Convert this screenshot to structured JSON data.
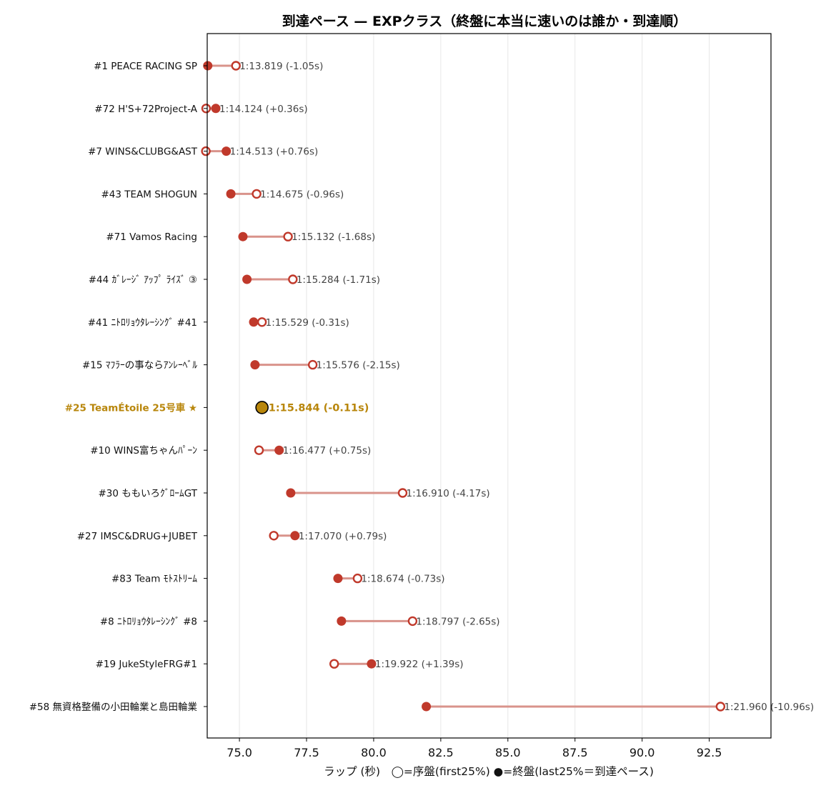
{
  "chart_data": {
    "type": "dumbbell",
    "title": "到達ペース — EXPクラス（終盤に本当に速いのは誰か・到達順）",
    "xlabel": "ラップ (秒)　◯=序盤(first25%)  ●=終盤(last25%＝到達ペース)",
    "xlim": [
      73.8,
      94.8
    ],
    "xticks": [
      "75.0",
      "77.5",
      "80.0",
      "82.5",
      "85.0",
      "87.5",
      "90.0",
      "92.5"
    ],
    "xtick_values": [
      75.0,
      77.5,
      80.0,
      82.5,
      85.0,
      87.5,
      90.0,
      92.5
    ],
    "grid": "x",
    "colors": {
      "point": "#c0392b",
      "line": "#d9938b",
      "highlight": "#b8860b",
      "highlight_label": "#b8860b"
    },
    "rows": [
      {
        "name": "#1 PEACE RACING SP",
        "early": 74.87,
        "late": 73.82,
        "label": "1:13.819  (-1.05s)",
        "highlight": false
      },
      {
        "name": "#72 H'S+72Project-A",
        "early": 73.76,
        "late": 74.12,
        "label": "1:14.124  (+0.36s)",
        "highlight": false
      },
      {
        "name": "#7 WINS&CLUBG&AST",
        "early": 73.75,
        "late": 74.51,
        "label": "1:14.513  (+0.76s)",
        "highlight": false
      },
      {
        "name": "#43 TEAM SHOGUN",
        "early": 75.64,
        "late": 74.68,
        "label": "1:14.675  (-0.96s)",
        "highlight": false
      },
      {
        "name": "#71 Vamos Racing",
        "early": 76.81,
        "late": 75.13,
        "label": "1:15.132  (-1.68s)",
        "highlight": false
      },
      {
        "name": "#44 ｶﾞﾚｰｼﾞ ｱｯﾌﾟ ﾗｲｽﾞ ③",
        "early": 76.99,
        "late": 75.28,
        "label": "1:15.284  (-1.71s)",
        "highlight": false
      },
      {
        "name": "#41 ﾆﾄﾛﾘｮｳﾀﾚｰｼﾝｸﾞ #41",
        "early": 75.84,
        "late": 75.53,
        "label": "1:15.529  (-0.31s)",
        "highlight": false
      },
      {
        "name": "#15 ﾏﾌﾗｰの事ならｱﾝﾚｰﾍﾞﾙ",
        "early": 77.73,
        "late": 75.58,
        "label": "1:15.576  (-2.15s)",
        "highlight": false
      },
      {
        "name": "#25 TeamÉtoile 25号車 ★",
        "early": 75.95,
        "late": 75.84,
        "label": "1:15.844  (-0.11s)",
        "highlight": true
      },
      {
        "name": "#10 WINS富ちゃんﾊﾟｰﾝ",
        "early": 75.73,
        "late": 76.48,
        "label": "1:16.477  (+0.75s)",
        "highlight": false
      },
      {
        "name": "#30 ももいろｸﾞﾛｰﾑGT",
        "early": 81.08,
        "late": 76.91,
        "label": "1:16.910  (-4.17s)",
        "highlight": false
      },
      {
        "name": "#27 IMSC&DRUG+JUBET",
        "early": 76.28,
        "late": 77.07,
        "label": "1:17.070  (+0.79s)",
        "highlight": false
      },
      {
        "name": "#83 Team ﾓﾄｽﾄﾘｰﾑ",
        "early": 79.4,
        "late": 78.67,
        "label": "1:18.674  (-0.73s)",
        "highlight": false
      },
      {
        "name": "#8 ﾆﾄﾛﾘｮｳﾀﾚｰｼﾝｸﾞ #8",
        "early": 81.45,
        "late": 78.8,
        "label": "1:18.797  (-2.65s)",
        "highlight": false
      },
      {
        "name": "#19 JukeStyleFRG#1",
        "early": 78.53,
        "late": 79.92,
        "label": "1:19.922  (+1.39s)",
        "highlight": false
      },
      {
        "name": "#58 無資格整備の小田輪業と島田輪業",
        "early": 92.92,
        "late": 81.96,
        "label": "1:21.960  (-10.96s)",
        "highlight": false
      }
    ]
  }
}
